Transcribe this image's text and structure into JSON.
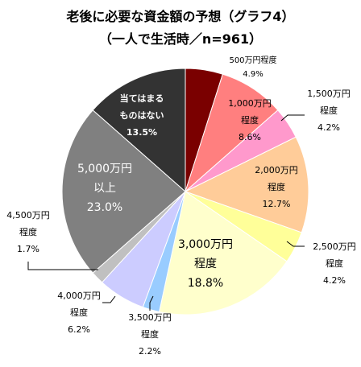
{
  "chart_data": {
    "type": "pie",
    "title": "老後に必要な資金額の予想（グラフ4）",
    "subtitle": "（一人で生活時／n=961）",
    "slices": [
      {
        "lines": [
          "500万円程度",
          "4.9%"
        ],
        "value": 4.9,
        "color": "#7a0000"
      },
      {
        "lines": [
          "1,000万円",
          "程度",
          "8.6%"
        ],
        "value": 8.6,
        "color": "#ff7f7f"
      },
      {
        "lines": [
          "1,500万円",
          "程度",
          "4.2%"
        ],
        "value": 4.2,
        "color": "#ff99cc"
      },
      {
        "lines": [
          "2,000万円",
          "程度",
          "12.7%"
        ],
        "value": 12.7,
        "color": "#ffcc99"
      },
      {
        "lines": [
          "2,500万円",
          "程度",
          "4.2%"
        ],
        "value": 4.2,
        "color": "#ffff99"
      },
      {
        "lines": [
          "3,000万円",
          "程度",
          "18.8%"
        ],
        "value": 18.8,
        "color": "#ffffcc"
      },
      {
        "lines": [
          "3,500万円",
          "程度",
          "2.2%"
        ],
        "value": 2.2,
        "color": "#99ccff"
      },
      {
        "lines": [
          "4,000万円",
          "程度",
          "6.2%"
        ],
        "value": 6.2,
        "color": "#ccccff"
      },
      {
        "lines": [
          "4,500万円",
          "程度",
          "1.7%"
        ],
        "value": 1.7,
        "color": "#c0c0c0"
      },
      {
        "lines": [
          "5,000万円",
          "以上",
          "23.0%"
        ],
        "value": 23.0,
        "color": "#808080"
      },
      {
        "lines": [
          "当てはまる",
          "ものはない",
          "13.5%"
        ],
        "value": 13.5,
        "color": "#333333"
      }
    ]
  }
}
